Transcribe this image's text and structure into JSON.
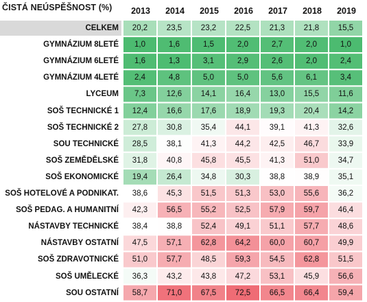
{
  "header": {
    "title": "ČISTÁ NEÚSPĚŠNOST (%)"
  },
  "chart_data": {
    "type": "heatmap",
    "title": "ČISTÁ NEÚSPĚŠNOST (%)",
    "columns": [
      "2013",
      "2014",
      "2015",
      "2016",
      "2017",
      "2018",
      "2019"
    ],
    "rows": [
      {
        "label": "CELKEM",
        "values": [
          "20,2",
          "23,5",
          "23,2",
          "22,5",
          "21,3",
          "21,8",
          "15,5"
        ],
        "numbers": [
          20.2,
          23.5,
          23.2,
          22.5,
          21.3,
          21.8,
          15.5
        ]
      },
      {
        "label": "GYMNÁZIUM 8LETÉ",
        "values": [
          "1,0",
          "1,6",
          "1,5",
          "2,0",
          "2,7",
          "2,0",
          "1,0"
        ],
        "numbers": [
          1.0,
          1.6,
          1.5,
          2.0,
          2.7,
          2.0,
          1.0
        ]
      },
      {
        "label": "GYMNÁZIUM 6LETÉ",
        "values": [
          "1,6",
          "1,3",
          "3,1",
          "2,9",
          "2,6",
          "2,0",
          "2,4"
        ],
        "numbers": [
          1.6,
          1.3,
          3.1,
          2.9,
          2.6,
          2.0,
          2.4
        ]
      },
      {
        "label": "GYMNÁZIUM 4LETÉ",
        "values": [
          "2,4",
          "4,8",
          "5,0",
          "5,0",
          "5,6",
          "6,1",
          "3,4"
        ],
        "numbers": [
          2.4,
          4.8,
          5.0,
          5.0,
          5.6,
          6.1,
          3.4
        ]
      },
      {
        "label": "LYCEUM",
        "values": [
          "7,3",
          "12,6",
          "14,1",
          "16,4",
          "13,0",
          "15,5",
          "11,6"
        ],
        "numbers": [
          7.3,
          12.6,
          14.1,
          16.4,
          13.0,
          15.5,
          11.6
        ]
      },
      {
        "label": "SOŠ TECHNICKÉ 1",
        "values": [
          "12,4",
          "16,6",
          "17,6",
          "18,9",
          "19,3",
          "20,4",
          "14,2"
        ],
        "numbers": [
          12.4,
          16.6,
          17.6,
          18.9,
          19.3,
          20.4,
          14.2
        ]
      },
      {
        "label": "SOŠ TECHNICKÉ 2",
        "values": [
          "27,8",
          "30,8",
          "35,4",
          "44,1",
          "39,1",
          "41,3",
          "32,6"
        ],
        "numbers": [
          27.8,
          30.8,
          35.4,
          44.1,
          39.1,
          41.3,
          32.6
        ]
      },
      {
        "label": "SOU TECHNICKÉ",
        "values": [
          "28,5",
          "38,1",
          "41,3",
          "44,2",
          "42,5",
          "46,7",
          "33,9"
        ],
        "numbers": [
          28.5,
          38.1,
          41.3,
          44.2,
          42.5,
          46.7,
          33.9
        ]
      },
      {
        "label": "SOŠ ZEMĚDĚLSKÉ",
        "values": [
          "31,8",
          "40,8",
          "45,8",
          "45,5",
          "41,3",
          "51,0",
          "34,7"
        ],
        "numbers": [
          31.8,
          40.8,
          45.8,
          45.5,
          41.3,
          51.0,
          34.7
        ]
      },
      {
        "label": "SOŠ EKONOMICKÉ",
        "values": [
          "19,4",
          "26,4",
          "34,8",
          "30,3",
          "38,8",
          "38,9",
          "35,1"
        ],
        "numbers": [
          19.4,
          26.4,
          34.8,
          30.3,
          38.8,
          38.9,
          35.1
        ]
      },
      {
        "label": "SOŠ HOTELOVÉ A PODNIKAT.",
        "values": [
          "38,6",
          "45,3",
          "51,5",
          "51,3",
          "53,0",
          "55,6",
          "36,2"
        ],
        "numbers": [
          38.6,
          45.3,
          51.5,
          51.3,
          53.0,
          55.6,
          36.2
        ]
      },
      {
        "label": "SOŠ PEDAG. A HUMANITNÍ",
        "values": [
          "42,3",
          "56,5",
          "55,2",
          "52,5",
          "57,9",
          "59,7",
          "46,4"
        ],
        "numbers": [
          42.3,
          56.5,
          55.2,
          52.5,
          57.9,
          59.7,
          46.4
        ]
      },
      {
        "label": "NÁSTAVBY TECHNICKÉ",
        "values": [
          "38,4",
          "38,8",
          "52,4",
          "49,1",
          "51,1",
          "57,7",
          "48,6"
        ],
        "numbers": [
          38.4,
          38.8,
          52.4,
          49.1,
          51.1,
          57.7,
          48.6
        ]
      },
      {
        "label": "NÁSTAVBY OSTATNÍ",
        "values": [
          "47,5",
          "57,1",
          "62,8",
          "64,2",
          "60,0",
          "60,7",
          "49,9"
        ],
        "numbers": [
          47.5,
          57.1,
          62.8,
          64.2,
          60.0,
          60.7,
          49.9
        ]
      },
      {
        "label": "SOŠ ZDRAVOTNICKÉ",
        "values": [
          "51,0",
          "57,7",
          "48,5",
          "59,3",
          "54,5",
          "62,8",
          "51,5"
        ],
        "numbers": [
          51.0,
          57.7,
          48.5,
          59.3,
          54.5,
          62.8,
          51.5
        ]
      },
      {
        "label": "SOŠ UMĚLECKÉ",
        "values": [
          "36,3",
          "43,2",
          "43,8",
          "47,2",
          "53,1",
          "45,9",
          "56,6"
        ],
        "numbers": [
          36.3,
          43.2,
          43.8,
          47.2,
          53.1,
          45.9,
          56.6
        ]
      },
      {
        "label": "SOU OSTATNÍ",
        "values": [
          "58,7",
          "71,0",
          "67,5",
          "72,5",
          "66,5",
          "66,4",
          "59,4"
        ],
        "numbers": [
          58.7,
          71.0,
          67.5,
          72.5,
          66.5,
          66.4,
          59.4
        ]
      }
    ],
    "color_scale": {
      "min": 1.0,
      "mid": 38.5,
      "max": 72.5,
      "min_color": "#4cbb70",
      "mid_color": "#ffffff",
      "max_color": "#ef6c75"
    },
    "total_row_highlight": "#d9d9d9"
  }
}
